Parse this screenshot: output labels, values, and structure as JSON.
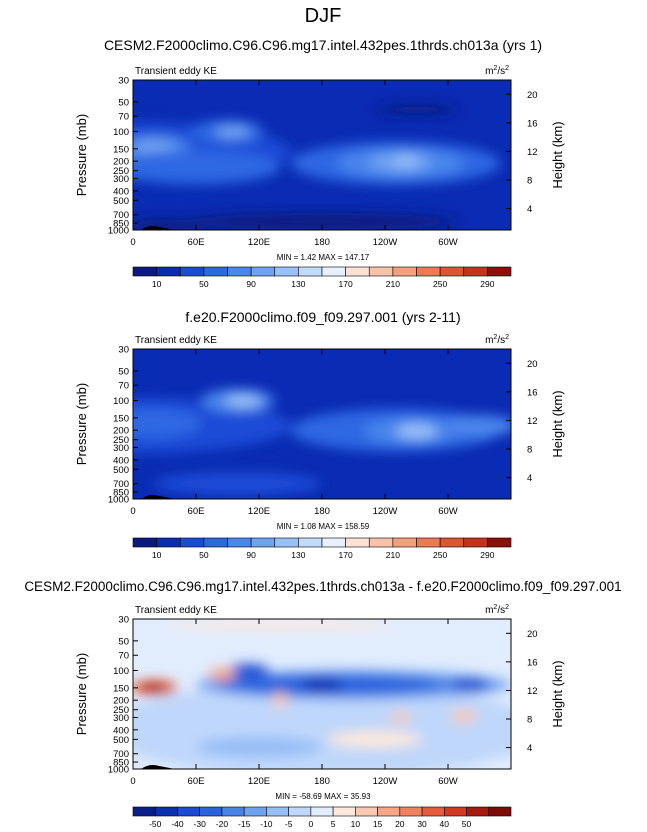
{
  "page": {
    "title": "DJF"
  },
  "palettes": {
    "seq": [
      "#0b1a7e",
      "#0a2bb3",
      "#1a4bd6",
      "#2d68e3",
      "#4a86ec",
      "#6fa3f2",
      "#99c0f7",
      "#c2dbfb",
      "#e6f0fe",
      "#fbe2d4",
      "#f7c2a8",
      "#f3a07e",
      "#ec7b55",
      "#df5434",
      "#c7311d",
      "#8c1009"
    ],
    "diff": [
      "#0a1f8a",
      "#0d2fb0",
      "#1c49cf",
      "#2c63dd",
      "#4a83e8",
      "#6fa2f0",
      "#97bef6",
      "#bfd7fa",
      "#e1ecfd",
      "#fde8dc",
      "#f9c8b2",
      "#f4a687",
      "#ee825e",
      "#e45c3a",
      "#cf3a22",
      "#a61b10",
      "#7a0b07"
    ]
  },
  "chart_data": [
    {
      "type": "heatmap",
      "title": "CESM2.F2000climo.C96.C96.mg17.intel.432pes.1thrds.ch013a (yrs 1)",
      "left_label": "Transient eddy KE",
      "units_html": "m<sup>2</sup>/s<sup>2</sup>",
      "units_label": "m2/s2",
      "ylabel": "Pressure (mb)",
      "ylabel_right": "Height (km)",
      "x_ticks": [
        "0",
        "60E",
        "120E",
        "180",
        "120W",
        "60W"
      ],
      "x_tick_values": [
        0,
        60,
        120,
        180,
        240,
        300
      ],
      "xlim": [
        0,
        360
      ],
      "y_ticks": [
        "30",
        "50",
        "70",
        "100",
        "150",
        "200",
        "250",
        "300",
        "400",
        "500",
        "700",
        "850",
        "1000"
      ],
      "y_tick_values": [
        30,
        50,
        70,
        100,
        150,
        200,
        250,
        300,
        400,
        500,
        700,
        850,
        1000
      ],
      "ylim": [
        30,
        1000
      ],
      "y_scale": "log",
      "height_ticks": [
        "20",
        "16",
        "12",
        "8",
        "4"
      ],
      "height_tick_values": [
        20,
        16,
        12,
        8,
        4
      ],
      "stats": "MIN =   1.42  MAX = 147.17",
      "colorbar_labels": [
        "10",
        "50",
        "90",
        "130",
        "170",
        "210",
        "250",
        "290"
      ],
      "colorbar_levels": [
        10,
        30,
        50,
        70,
        90,
        110,
        130,
        150,
        170,
        190,
        210,
        230,
        250,
        270,
        290
      ],
      "background_level": 1,
      "blobs": [
        {
          "lon": 0,
          "p": 160,
          "w": 300,
          "h": 1.35,
          "lvl": 2
        },
        {
          "lon": 20,
          "p": 145,
          "w": 70,
          "h": 0.55,
          "lvl": 4
        },
        {
          "lon": 20,
          "p": 145,
          "w": 40,
          "h": 0.35,
          "lvl": 5
        },
        {
          "lon": 90,
          "p": 100,
          "w": 70,
          "h": 0.55,
          "lvl": 3
        },
        {
          "lon": 95,
          "p": 100,
          "w": 35,
          "h": 0.3,
          "lvl": 5
        },
        {
          "lon": 60,
          "p": 230,
          "w": 160,
          "h": 0.8,
          "lvl": 3
        },
        {
          "lon": 250,
          "p": 210,
          "w": 200,
          "h": 1.0,
          "lvl": 3
        },
        {
          "lon": 255,
          "p": 210,
          "w": 120,
          "h": 0.7,
          "lvl": 4
        },
        {
          "lon": 255,
          "p": 205,
          "w": 60,
          "h": 0.45,
          "lvl": 5
        },
        {
          "lon": 260,
          "p": 200,
          "w": 25,
          "h": 0.25,
          "lvl": 6
        },
        {
          "lon": 180,
          "p": 820,
          "w": 260,
          "h": 0.4,
          "lvl": 0
        },
        {
          "lon": 30,
          "p": 900,
          "w": 80,
          "h": 0.3,
          "lvl": 0
        },
        {
          "lon": 270,
          "p": 60,
          "w": 80,
          "h": 0.22,
          "lvl": 0
        }
      ]
    },
    {
      "type": "heatmap",
      "title": "f.e20.F2000climo.f09_f09.297.001 (yrs 2-11)",
      "left_label": "Transient eddy KE",
      "units_html": "m<sup>2</sup>/s<sup>2</sup>",
      "units_label": "m2/s2",
      "ylabel": "Pressure (mb)",
      "ylabel_right": "Height (km)",
      "x_ticks": [
        "0",
        "60E",
        "120E",
        "180",
        "120W",
        "60W"
      ],
      "x_tick_values": [
        0,
        60,
        120,
        180,
        240,
        300
      ],
      "xlim": [
        0,
        360
      ],
      "y_ticks": [
        "30",
        "50",
        "70",
        "100",
        "150",
        "200",
        "250",
        "300",
        "400",
        "500",
        "700",
        "850",
        "1000"
      ],
      "y_tick_values": [
        30,
        50,
        70,
        100,
        150,
        200,
        250,
        300,
        400,
        500,
        700,
        850,
        1000
      ],
      "ylim": [
        30,
        1000
      ],
      "y_scale": "log",
      "height_ticks": [
        "20",
        "16",
        "12",
        "8",
        "4"
      ],
      "height_tick_values": [
        20,
        16,
        12,
        8,
        4
      ],
      "stats": "MIN =   1.08  MAX = 158.59",
      "colorbar_labels": [
        "10",
        "50",
        "90",
        "130",
        "170",
        "210",
        "250",
        "290"
      ],
      "colorbar_levels": [
        10,
        30,
        50,
        70,
        90,
        110,
        130,
        150,
        170,
        190,
        210,
        230,
        250,
        270,
        290
      ],
      "background_level": 1,
      "blobs": [
        {
          "lon": 0,
          "p": 180,
          "w": 300,
          "h": 1.3,
          "lvl": 2
        },
        {
          "lon": 20,
          "p": 170,
          "w": 90,
          "h": 0.7,
          "lvl": 3
        },
        {
          "lon": 100,
          "p": 100,
          "w": 70,
          "h": 0.55,
          "lvl": 4
        },
        {
          "lon": 105,
          "p": 100,
          "w": 35,
          "h": 0.3,
          "lvl": 6
        },
        {
          "lon": 250,
          "p": 200,
          "w": 200,
          "h": 1.0,
          "lvl": 3
        },
        {
          "lon": 265,
          "p": 205,
          "w": 90,
          "h": 0.6,
          "lvl": 4
        },
        {
          "lon": 270,
          "p": 205,
          "w": 40,
          "h": 0.35,
          "lvl": 6
        },
        {
          "lon": 330,
          "p": 180,
          "w": 70,
          "h": 0.5,
          "lvl": 4
        },
        {
          "lon": 100,
          "p": 700,
          "w": 160,
          "h": 0.55,
          "lvl": 2
        }
      ]
    },
    {
      "type": "heatmap",
      "title": "CESM2.F2000climo.C96.C96.mg17.intel.432pes.1thrds.ch013a - f.e20.F2000climo.f09_f09.297.001",
      "left_label": "Transient eddy KE",
      "units_html": "m<sup>2</sup>/s<sup>2</sup>",
      "units_label": "m2/s2",
      "ylabel": "Pressure (mb)",
      "ylabel_right": "Height (km)",
      "x_ticks": [
        "0",
        "60E",
        "120E",
        "180",
        "120W",
        "60W"
      ],
      "x_tick_values": [
        0,
        60,
        120,
        180,
        240,
        300
      ],
      "xlim": [
        0,
        360
      ],
      "y_ticks": [
        "30",
        "50",
        "70",
        "100",
        "150",
        "200",
        "250",
        "300",
        "400",
        "500",
        "700",
        "850",
        "1000"
      ],
      "y_tick_values": [
        30,
        50,
        70,
        100,
        150,
        200,
        250,
        300,
        400,
        500,
        700,
        850,
        1000
      ],
      "ylim": [
        30,
        1000
      ],
      "y_scale": "log",
      "height_ticks": [
        "20",
        "16",
        "12",
        "8",
        "4"
      ],
      "height_tick_values": [
        20,
        16,
        12,
        8,
        4
      ],
      "stats": "MIN = -58.69  MAX = 35.93",
      "colorbar_labels": [
        "-50",
        "-40",
        "-30",
        "-20",
        "-15",
        "-10",
        "-5",
        "0",
        "5",
        "10",
        "15",
        "20",
        "30",
        "40",
        "50"
      ],
      "colorbar_levels": [
        -50,
        -40,
        -30,
        -20,
        -15,
        -10,
        -5,
        0,
        5,
        10,
        15,
        20,
        30,
        40,
        50
      ],
      "background_level": 8,
      "blobs": [
        {
          "lon": 180,
          "p": 400,
          "w": 420,
          "h": 2.2,
          "lvl": 7
        },
        {
          "lon": 210,
          "p": 140,
          "w": 300,
          "h": 0.7,
          "lvl": 5
        },
        {
          "lon": 190,
          "p": 140,
          "w": 220,
          "h": 0.5,
          "lvl": 3
        },
        {
          "lon": 180,
          "p": 140,
          "w": 40,
          "h": 0.3,
          "lvl": 1
        },
        {
          "lon": 320,
          "p": 140,
          "w": 40,
          "h": 0.3,
          "lvl": 2
        },
        {
          "lon": 110,
          "p": 100,
          "w": 40,
          "h": 0.3,
          "lvl": 2
        },
        {
          "lon": 20,
          "p": 150,
          "w": 45,
          "h": 0.35,
          "lvl": 13
        },
        {
          "lon": 20,
          "p": 150,
          "w": 25,
          "h": 0.22,
          "lvl": 15
        },
        {
          "lon": 85,
          "p": 110,
          "w": 25,
          "h": 0.3,
          "lvl": 11
        },
        {
          "lon": 140,
          "p": 200,
          "w": 15,
          "h": 0.35,
          "lvl": 10
        },
        {
          "lon": 255,
          "p": 300,
          "w": 20,
          "h": 0.25,
          "lvl": 10
        },
        {
          "lon": 315,
          "p": 290,
          "w": 25,
          "h": 0.3,
          "lvl": 10
        },
        {
          "lon": 120,
          "p": 600,
          "w": 120,
          "h": 0.5,
          "lvl": 6
        },
        {
          "lon": 230,
          "p": 500,
          "w": 90,
          "h": 0.4,
          "lvl": 9
        },
        {
          "lon": 140,
          "p": 35,
          "w": 220,
          "h": 0.2,
          "lvl": 9
        }
      ]
    }
  ]
}
